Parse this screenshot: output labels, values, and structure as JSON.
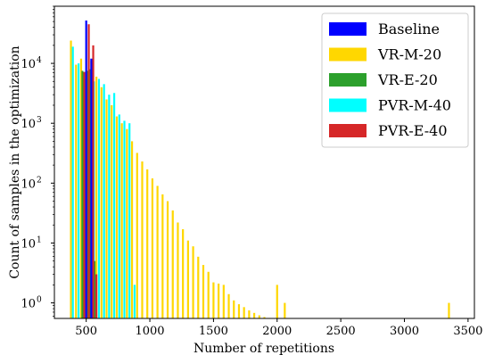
{
  "chart_data": {
    "type": "bar",
    "xlabel": "Number of repetitions",
    "ylabel": "Count of samples in the optimization",
    "xlim": [
      250,
      3550
    ],
    "ylim": [
      0.55,
      90000
    ],
    "yscale": "log",
    "xticks": [
      {
        "value": 500,
        "label": "500"
      },
      {
        "value": 1000,
        "label": "1000"
      },
      {
        "value": 1500,
        "label": "1500"
      },
      {
        "value": 2000,
        "label": "2000"
      },
      {
        "value": 2500,
        "label": "2500"
      },
      {
        "value": 3000,
        "label": "3000"
      },
      {
        "value": 3500,
        "label": "3500"
      }
    ],
    "yticks": [
      {
        "value": 1,
        "base": "10",
        "exp": "0"
      },
      {
        "value": 10,
        "base": "10",
        "exp": "1"
      },
      {
        "value": 100,
        "base": "10",
        "exp": "2"
      },
      {
        "value": 1000,
        "base": "10",
        "exp": "3"
      },
      {
        "value": 10000,
        "base": "10",
        "exp": "4"
      }
    ],
    "grid": false,
    "legend_position": "top-right",
    "series": [
      {
        "name": "VR-M-20",
        "color": "#ffd700",
        "points": [
          [
            380,
            24000
          ],
          [
            420,
            9500
          ],
          [
            460,
            12000
          ],
          [
            500,
            5500
          ],
          [
            540,
            11000
          ],
          [
            580,
            6000
          ],
          [
            620,
            4000
          ],
          [
            660,
            2500
          ],
          [
            700,
            2000
          ],
          [
            740,
            1300
          ],
          [
            780,
            1000
          ],
          [
            820,
            800
          ],
          [
            860,
            500
          ],
          [
            900,
            320
          ],
          [
            940,
            230
          ],
          [
            980,
            170
          ],
          [
            1020,
            120
          ],
          [
            1060,
            90
          ],
          [
            1100,
            65
          ],
          [
            1140,
            50
          ],
          [
            1180,
            35
          ],
          [
            1220,
            22
          ],
          [
            1260,
            17
          ],
          [
            1300,
            11
          ],
          [
            1340,
            8.8
          ],
          [
            1380,
            5.9
          ],
          [
            1420,
            4.3
          ],
          [
            1460,
            3.3
          ],
          [
            1500,
            2.2
          ],
          [
            1540,
            2.1
          ],
          [
            1580,
            2.0
          ],
          [
            1620,
            1.4
          ],
          [
            1660,
            1.1
          ],
          [
            1700,
            0.95
          ],
          [
            1740,
            0.85
          ],
          [
            1780,
            0.75
          ],
          [
            1820,
            0.68
          ],
          [
            1860,
            0.62
          ],
          [
            1900,
            0.58
          ],
          [
            1940,
            0.56
          ],
          [
            2000,
            2.0
          ],
          [
            2060,
            1.0
          ],
          [
            3350,
            1.0
          ]
        ]
      },
      {
        "name": "PVR-M-40",
        "color": "#00ffff",
        "points": [
          [
            395,
            19000
          ],
          [
            440,
            10000
          ],
          [
            480,
            7000
          ],
          [
            560,
            5000
          ],
          [
            600,
            5500
          ],
          [
            640,
            4500
          ],
          [
            680,
            3000
          ],
          [
            720,
            3200
          ],
          [
            760,
            1400
          ],
          [
            800,
            1100
          ],
          [
            840,
            1000
          ],
          [
            880,
            2.0
          ]
        ]
      },
      {
        "name": "VR-E-20",
        "color": "#2ca02c",
        "points": [
          [
            470,
            7500
          ],
          [
            510,
            7500
          ],
          [
            530,
            8000
          ],
          [
            565,
            5.0
          ]
        ]
      },
      {
        "name": "PVR-E-40",
        "color": "#d62728",
        "points": [
          [
            485,
            7200
          ],
          [
            520,
            45000
          ],
          [
            555,
            20000
          ],
          [
            580,
            3.0
          ]
        ]
      },
      {
        "name": "Baseline",
        "color": "#0000ff",
        "points": [
          [
            500,
            52000
          ],
          [
            540,
            12000
          ]
        ]
      }
    ],
    "legend": [
      {
        "label": "Baseline",
        "color": "#0000ff"
      },
      {
        "label": "VR-M-20",
        "color": "#ffd700"
      },
      {
        "label": "VR-E-20",
        "color": "#2ca02c"
      },
      {
        "label": "PVR-M-40",
        "color": "#00ffff"
      },
      {
        "label": "PVR-E-40",
        "color": "#d62728"
      }
    ]
  }
}
